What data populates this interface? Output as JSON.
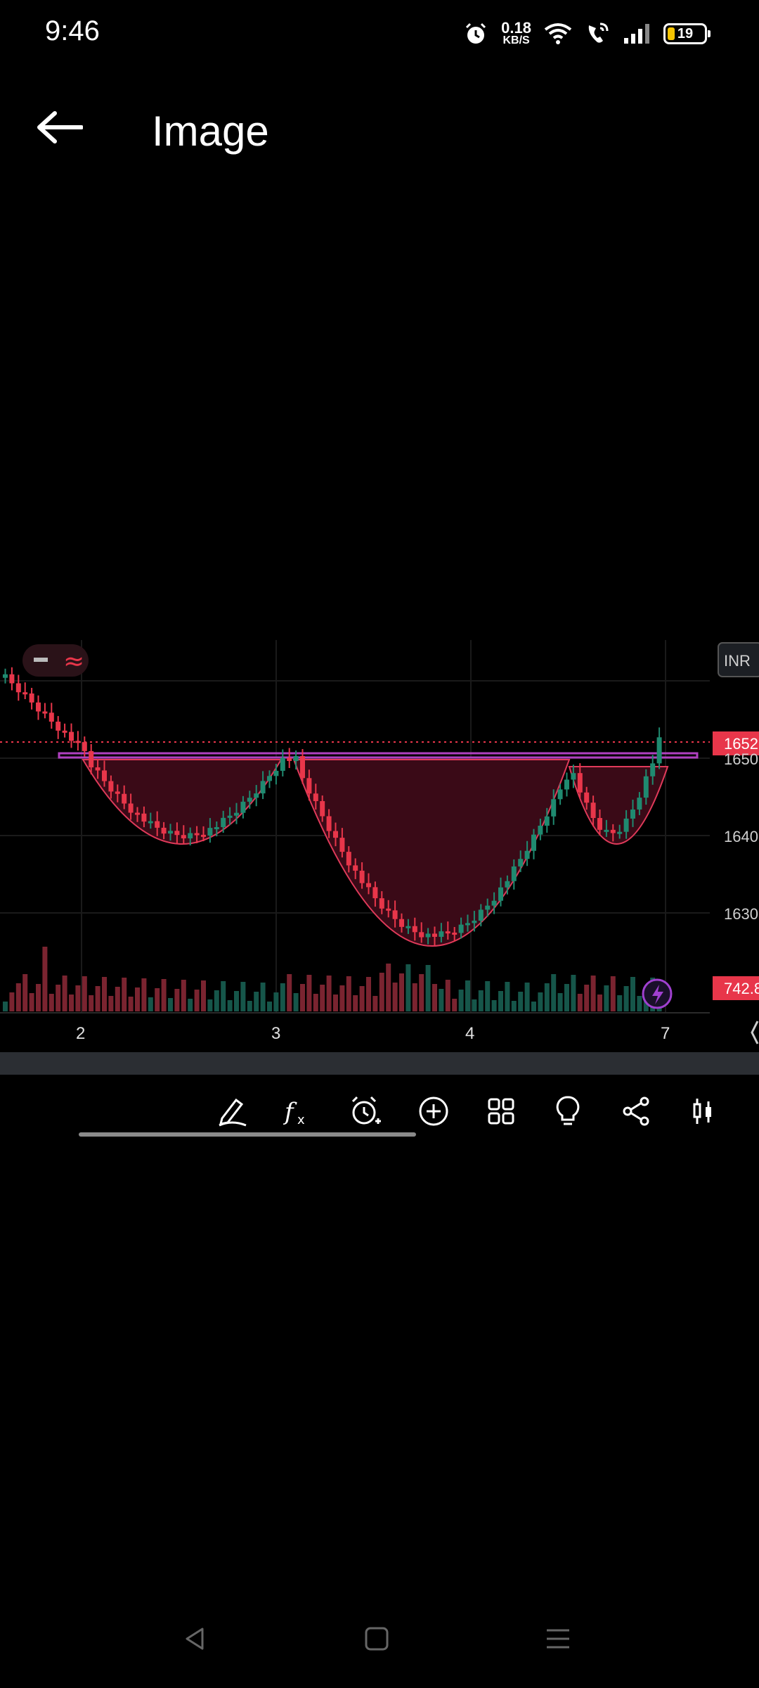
{
  "status_bar": {
    "time": "9:46",
    "net_speed_value": "0.18",
    "net_speed_unit": "KB/S",
    "battery_level": "19",
    "icons": [
      "alarm-icon",
      "wifi-icon",
      "wifi-calling-icon",
      "signal-icon",
      "battery-icon"
    ]
  },
  "header": {
    "title": "Image",
    "back_icon": "arrow-left-icon"
  },
  "chart": {
    "currency": "INR",
    "current_price_label": "1652",
    "volume_label": "742.8",
    "price_axis_labels": [
      "1650",
      "1640",
      "1630"
    ],
    "time_axis_labels": [
      "2",
      "3",
      "4",
      "7"
    ],
    "colors": {
      "up": "#1f8a70",
      "down": "#e8364a",
      "pattern_fill": "#3a0a17",
      "pattern_stroke": "#e03a5a",
      "resistance_line": "#b040c0",
      "price_tag": "#e8364a"
    }
  },
  "toolbar": {
    "icons": [
      "draw-pen-icon",
      "indicators-fx-icon",
      "add-alert-icon",
      "add-circle-icon",
      "grid-layout-icon",
      "ideas-bulb-icon",
      "share-icon",
      "candles-icon"
    ]
  },
  "nav": {
    "icons": [
      "nav-back-icon",
      "nav-home-icon",
      "nav-menu-icon"
    ]
  }
}
